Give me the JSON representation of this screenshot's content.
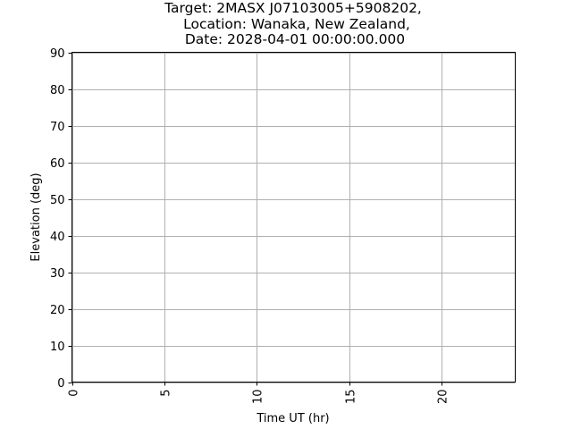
{
  "chart_data": {
    "type": "line",
    "title_lines": [
      "Target: 2MASX J07103005+5908202,",
      "Location: Wanaka, New Zealand,",
      "Date: 2028-04-01 00:00:00.000"
    ],
    "xlabel": "Time UT (hr)",
    "ylabel": "Elevation (deg)",
    "xlim": [
      0,
      24
    ],
    "ylim": [
      0,
      90
    ],
    "xticks": [
      0,
      5,
      10,
      15,
      20
    ],
    "xtick_labels": [
      "0",
      "5",
      "10",
      "15",
      "20"
    ],
    "yticks": [
      0,
      10,
      20,
      30,
      40,
      50,
      60,
      70,
      80,
      90
    ],
    "ytick_labels": [
      "0",
      "10",
      "20",
      "30",
      "40",
      "50",
      "60",
      "70",
      "80",
      "90"
    ],
    "grid": true,
    "series": [],
    "colors": {
      "grid": "#b0b0b0",
      "axes": "#000000",
      "text": "#000000",
      "background": "#ffffff"
    }
  }
}
